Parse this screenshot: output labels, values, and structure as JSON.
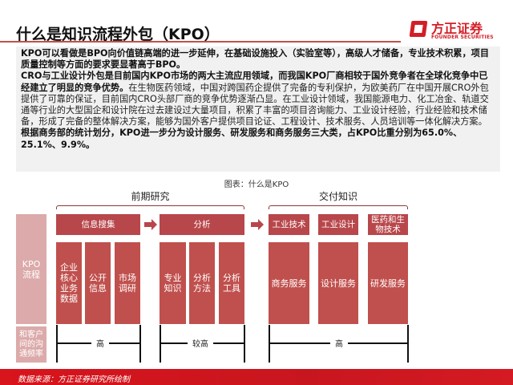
{
  "title": "什么是知识流程外包（KPO）",
  "logo": {
    "cn": "方正证券",
    "en": "FOUNDER SECURITIES"
  },
  "text": {
    "p1": "KPO可以看做是BPO向价值链高端的进一步延伸，在基础设施投入（实验室等），高级人才储备，专业技术积累，项目质量控制等方面的要求要显著高于BPO。",
    "p2_bold": "CRO与工业设计外包是目前国内KPO市场的两大主流应用领域，而我国KPO厂商相较于国外竞争者在全球化竞争中已经建立了明显的竞争优势。",
    "p2_rest": "在生物医药领域，中国对跨国药企提供了完备的专利保护，为欧美药厂在中国开展CRO外包提供了可靠的保证，目前国内CRO头部厂商的竞争优势逐渐凸显。在工业设计领域，我国能源电力、化工冶金、轨道交通等行业的大型国企和设计院在过去建设过大量项目，积累了丰富的项目咨询能力、工业设计经验，行业经验和技术储备，形成了完备的整体解决方案，能够为国外客户提供项目论证、工程设计、技术服务、人员培训等一体化解决方案。",
    "p3": "根据商务部的统计划分，KPO进一步分为设计服务、研发服务和商务服务三大类，占KPO比重分别为65.0%、25.1%、9.9%。"
  },
  "diagram": {
    "caption": "图表：什么是KPO",
    "group1": "前期研究",
    "group2": "交付知识",
    "row_label1": "KPO流程",
    "row_label2": "和客户间的沟通频率",
    "headers": [
      "信息搜集",
      "分析",
      "工业技术",
      "工业设计",
      "医药和生物技术"
    ],
    "subs": [
      "企业核心业务数据",
      "公开信息",
      "市场调研",
      "专业知识",
      "分析方法",
      "分析工具",
      "商务服务",
      "设计服务",
      "研发服务"
    ],
    "levels": [
      "高",
      "较高",
      "高"
    ]
  },
  "footer": "数据来源：方正证券研究所绘制",
  "colors": {
    "accent": "#c0504d",
    "brand": "#d21e26"
  }
}
